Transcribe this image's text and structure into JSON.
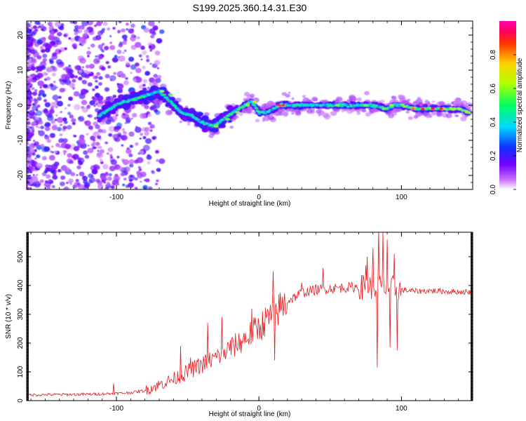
{
  "title": "S199.2025.360.14.31.E30",
  "chart_data": [
    {
      "type": "heatmap",
      "panel": "spectrogram",
      "xlabel": "Height of straight line (km)",
      "ylabel": "Frequency (Hz)",
      "xlim": [
        -163,
        150
      ],
      "ylim": [
        -24,
        24
      ],
      "x_ticks": [
        -100,
        0,
        100
      ],
      "x_tick_labels": [
        "-100",
        "0",
        "100"
      ],
      "y_ticks": [
        -20,
        -10,
        0,
        10,
        20
      ],
      "y_tick_labels": [
        "-20",
        "-10",
        "0",
        "10",
        "20"
      ],
      "ridge": {
        "x": [
          -112,
          -105,
          -95,
          -85,
          -78,
          -70,
          -62,
          -55,
          -47,
          -40,
          -32,
          -25,
          -18,
          -10,
          -5,
          0,
          5,
          10,
          15,
          25,
          40,
          60,
          80,
          90,
          95,
          100,
          110,
          120,
          130,
          140,
          148
        ],
        "y": [
          -3,
          -1,
          1,
          2,
          3,
          4,
          1,
          -2,
          -3,
          -5,
          -6,
          -4,
          -2,
          0,
          1,
          -2,
          -2,
          -1,
          0,
          0,
          0,
          0,
          0,
          -1,
          0,
          0,
          -1,
          -1,
          -1,
          -1,
          -2
        ]
      },
      "colorbar": {
        "label": "Normalized spectral amplitude",
        "range": [
          0.0,
          1.0
        ],
        "ticks": [
          0.0,
          0.2,
          0.4,
          0.6,
          0.8
        ],
        "tick_labels": [
          "0.0",
          "0.2",
          "0.4",
          "0.6",
          "0.8"
        ],
        "colors": [
          "#ffffff",
          "#c86bff",
          "#7000ff",
          "#1030ff",
          "#00d8ff",
          "#00ff60",
          "#b0ff00",
          "#ffd000",
          "#ff3000",
          "#ff0060",
          "#ff00b0"
        ]
      }
    },
    {
      "type": "line",
      "panel": "snr",
      "xlabel": "Height of straight line (km)",
      "ylabel": "SNR (10 * v/v)",
      "xlim": [
        -163,
        150
      ],
      "ylim": [
        0,
        585
      ],
      "x_ticks": [
        -100,
        0,
        100
      ],
      "x_tick_labels": [
        "-100",
        "0",
        "100"
      ],
      "y_ticks": [
        0,
        100,
        200,
        300,
        400,
        500
      ],
      "y_tick_labels": [
        "0",
        "100",
        "200",
        "300",
        "400",
        "500"
      ],
      "series": [
        {
          "name": "SNR",
          "color": "#e8191d",
          "envelope_x": [
            -163,
            -120,
            -100,
            -90,
            -80,
            -70,
            -60,
            -50,
            -40,
            -30,
            -20,
            -10,
            0,
            10,
            20,
            30,
            40,
            50,
            60,
            70,
            80,
            90,
            100,
            110,
            120,
            130,
            140,
            150
          ],
          "envelope_y": [
            20,
            22,
            25,
            28,
            35,
            55,
            75,
            100,
            125,
            150,
            180,
            215,
            255,
            300,
            345,
            375,
            385,
            390,
            393,
            395,
            395,
            395,
            385,
            380,
            382,
            380,
            378,
            378
          ],
          "spikes": [
            {
              "x": -102,
              "y": 60
            },
            {
              "x": -55,
              "y": 190
            },
            {
              "x": -48,
              "y": 150
            },
            {
              "x": -36,
              "y": 270
            },
            {
              "x": -26,
              "y": 290
            },
            {
              "x": -20,
              "y": 210
            },
            {
              "x": -5,
              "y": 320
            },
            {
              "x": 10,
              "y": 450
            },
            {
              "x": 11,
              "y": 140
            },
            {
              "x": 30,
              "y": 410
            },
            {
              "x": 45,
              "y": 460
            },
            {
              "x": 75,
              "y": 470
            },
            {
              "x": 76,
              "y": 500
            },
            {
              "x": 80,
              "y": 530
            },
            {
              "x": 83,
              "y": 115
            },
            {
              "x": 84,
              "y": 590
            },
            {
              "x": 87,
              "y": 585
            },
            {
              "x": 90,
              "y": 560
            },
            {
              "x": 92,
              "y": 185
            },
            {
              "x": 95,
              "y": 510
            },
            {
              "x": 97,
              "y": 175
            }
          ]
        }
      ]
    }
  ]
}
